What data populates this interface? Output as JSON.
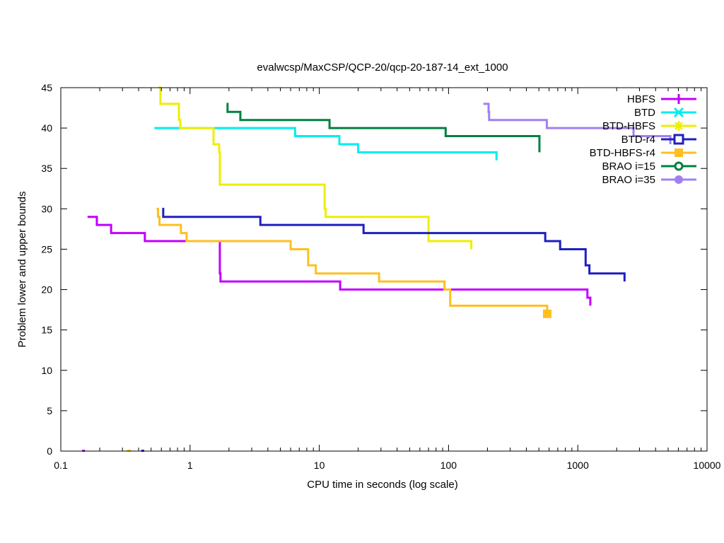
{
  "chart_data": {
    "type": "line",
    "title": "evalwcsp/MaxCSP/QCP-20/qcp-20-187-14_ext_1000",
    "xlabel": "CPU time in seconds (log scale)",
    "ylabel": "Problem lower and upper bounds",
    "xscale": "log",
    "xlim": [
      0.1,
      10000
    ],
    "ylim": [
      0,
      45
    ],
    "xticks": [
      {
        "value": 0.1,
        "label": "0.1"
      },
      {
        "value": 1,
        "label": "1"
      },
      {
        "value": 10,
        "label": "10"
      },
      {
        "value": 100,
        "label": "100"
      },
      {
        "value": 1000,
        "label": "1000"
      },
      {
        "value": 10000,
        "label": "10000"
      }
    ],
    "yticks": [
      {
        "value": 0,
        "label": "0"
      },
      {
        "value": 5,
        "label": "5"
      },
      {
        "value": 10,
        "label": "10"
      },
      {
        "value": 15,
        "label": "15"
      },
      {
        "value": 20,
        "label": "20"
      },
      {
        "value": 25,
        "label": "25"
      },
      {
        "value": 30,
        "label": "30"
      },
      {
        "value": 35,
        "label": "35"
      },
      {
        "value": 40,
        "label": "40"
      },
      {
        "value": 45,
        "label": "45"
      }
    ],
    "grid": false,
    "legend_position": "top-right",
    "series": [
      {
        "name": "HBFS",
        "color": "#c000ff",
        "marker": "plus",
        "steps": [
          [
            0.161,
            29
          ],
          [
            0.19,
            28
          ],
          [
            0.245,
            27
          ],
          [
            0.447,
            26
          ],
          [
            1.7,
            22
          ],
          [
            1.72,
            21
          ],
          [
            14.5,
            20
          ],
          [
            1187,
            19
          ],
          [
            1250,
            18
          ]
        ],
        "end": 1250,
        "lower_bound_points": [
          [
            0.15,
            0
          ]
        ]
      },
      {
        "name": "BTD",
        "color": "#00eeee",
        "marker": "x",
        "steps": [
          [
            0.53,
            40
          ],
          [
            6.5,
            39
          ],
          [
            14.3,
            38
          ],
          [
            20,
            37
          ],
          [
            235,
            36
          ]
        ],
        "end": 235,
        "lower_bound_points": []
      },
      {
        "name": "BTD-HBFS",
        "color": "#eeee00",
        "marker": "star",
        "steps": [
          [
            0.57,
            45
          ],
          [
            0.59,
            43
          ],
          [
            0.82,
            41
          ],
          [
            0.84,
            40
          ],
          [
            1.52,
            38
          ],
          [
            1.68,
            37
          ],
          [
            1.7,
            33
          ],
          [
            11,
            30
          ],
          [
            11.2,
            29
          ],
          [
            70,
            26
          ],
          [
            150,
            25
          ]
        ],
        "end": 150,
        "lower_bound_points": [
          [
            0.33,
            0
          ]
        ]
      },
      {
        "name": "BTD-r4",
        "color": "#1f1fbf",
        "marker": "open-square",
        "steps": [
          [
            0.61,
            30
          ],
          [
            0.62,
            29
          ],
          [
            3.5,
            28
          ],
          [
            22,
            27
          ],
          [
            560,
            26
          ],
          [
            730,
            25
          ],
          [
            1150,
            23
          ],
          [
            1230,
            22
          ],
          [
            2300,
            21
          ]
        ],
        "end": 2300,
        "lower_bound_points": [
          [
            0.43,
            0
          ]
        ]
      },
      {
        "name": "BTD-HBFS-r4",
        "color": "#ffbf20",
        "marker": "filled-square",
        "steps": [
          [
            0.55,
            30
          ],
          [
            0.565,
            29
          ],
          [
            0.58,
            28
          ],
          [
            0.85,
            27
          ],
          [
            0.94,
            26
          ],
          [
            6,
            25
          ],
          [
            8.2,
            23
          ],
          [
            9.4,
            22
          ],
          [
            29,
            21
          ],
          [
            93,
            20
          ],
          [
            103,
            18
          ],
          [
            580,
            17
          ]
        ],
        "end": 580,
        "final_point": [
          580,
          17
        ],
        "lower_bound_points": [
          [
            0.34,
            0
          ]
        ]
      },
      {
        "name": "BRAO i=15",
        "color": "#008040",
        "marker": "open-circle",
        "steps": [
          [
            1.92,
            43
          ],
          [
            1.95,
            42
          ],
          [
            2.45,
            41
          ],
          [
            12,
            40
          ],
          [
            95,
            39
          ],
          [
            505,
            37
          ]
        ],
        "end": 505,
        "lower_bound_points": []
      },
      {
        "name": "BRAO i=35",
        "color": "#a080f0",
        "marker": "filled-circle",
        "steps": [
          [
            186,
            43
          ],
          [
            204,
            42
          ],
          [
            206,
            41
          ],
          [
            576,
            40
          ],
          [
            2700,
            39
          ],
          [
            5200,
            38
          ]
        ],
        "end": 5200,
        "lower_bound_points": []
      }
    ]
  }
}
